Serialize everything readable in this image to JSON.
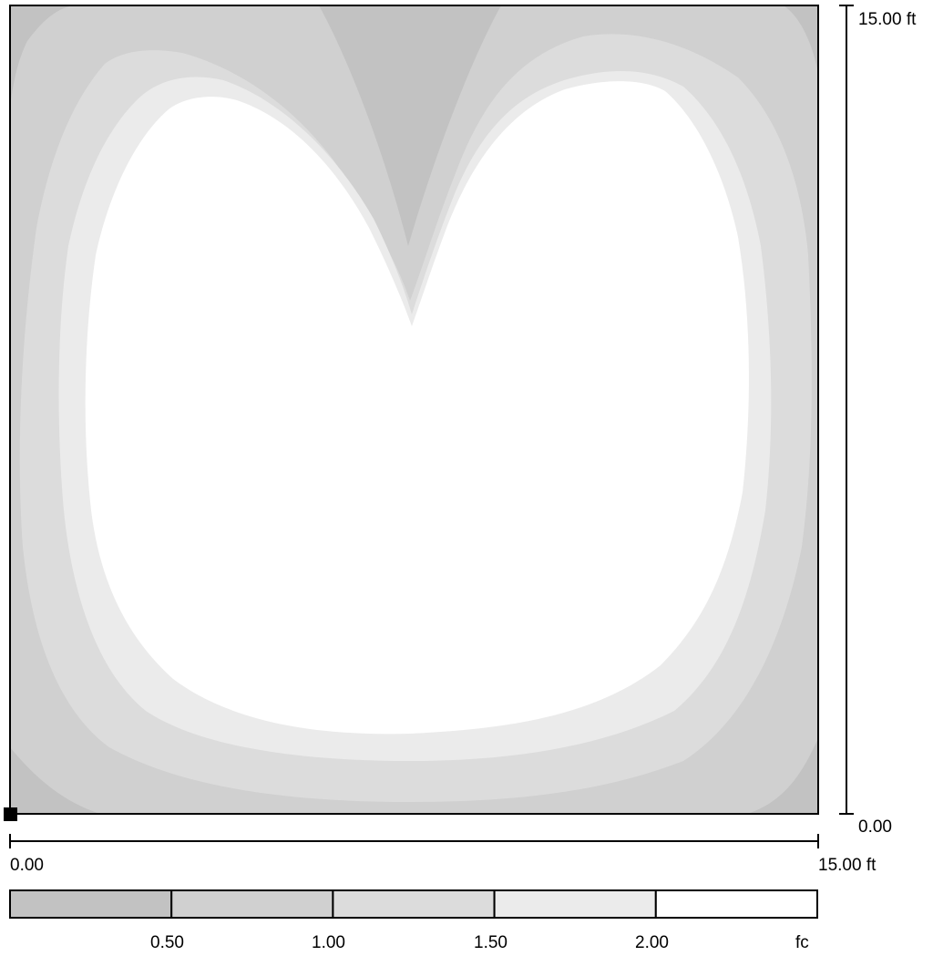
{
  "diagram": {
    "type": "illuminance contour plot",
    "area_width": 15.0,
    "area_height": 15.0,
    "unit": "ft"
  },
  "x_scale": {
    "min_label": "0.00",
    "max_label": "15.00 ft"
  },
  "y_scale": {
    "min_label": "0.00",
    "max_label": "15.00 ft"
  },
  "legend": {
    "unit_label": "fc",
    "levels": [
      {
        "label": "0.50",
        "color": "#c2c2c2"
      },
      {
        "label": "1.00",
        "color": "#d0d0d0"
      },
      {
        "label": "1.50",
        "color": "#dcdcdc"
      },
      {
        "label": "2.00",
        "color": "#ebebeb"
      },
      {
        "label": "",
        "color": "#ffffff"
      }
    ]
  }
}
